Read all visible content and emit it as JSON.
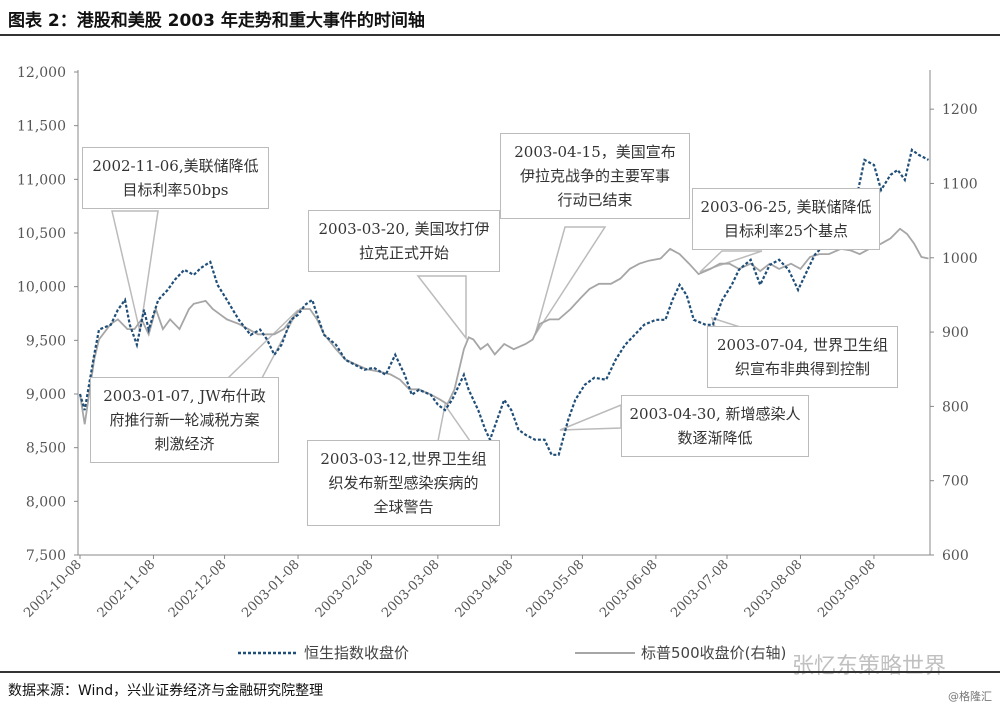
{
  "title": "图表 2：港股和美股 2003 年走势和重大事件的时间轴",
  "source": "数据来源：Wind，兴业证券经济与金融研究院整理",
  "watermark": "张忆东策略世界",
  "watermark2": "@格隆汇",
  "annotations": [
    {
      "lines": [
        "2002-11-06,美联储降低",
        "目标利率50bps"
      ]
    },
    {
      "lines": [
        "2003-01-07, JW布什政",
        "府推行新一轮减税方案",
        "刺激经济"
      ]
    },
    {
      "lines": [
        "2003-03-20, 美国攻打伊",
        "拉克正式开始"
      ]
    },
    {
      "lines": [
        "2003-04-15，美国宣布",
        "伊拉克战争的主要军事",
        "行动已结束"
      ]
    },
    {
      "lines": [
        "2003-06-25, 美联储降低",
        "目标利率25个基点"
      ]
    },
    {
      "lines": [
        "2003-07-04, 世界卫生组",
        "织宣布非典得到控制"
      ]
    },
    {
      "lines": [
        "2003-04-30, 新增感染人",
        "数逐渐降低"
      ]
    },
    {
      "lines": [
        "2003-03-12,世界卫生组",
        "织发布新型感染疾病的",
        "全球警告"
      ]
    }
  ],
  "chart_data": {
    "type": "line",
    "title": "",
    "xlabel": "",
    "ylabel": "",
    "grid": false,
    "legend_placement": "bottom",
    "x_ticks": [
      "2002-10-08",
      "2002-11-08",
      "2002-12-08",
      "2003-01-08",
      "2003-02-08",
      "2003-03-08",
      "2003-04-08",
      "2003-05-08",
      "2003-06-08",
      "2003-07-08",
      "2003-08-08",
      "2003-09-08"
    ],
    "y_left": {
      "lim": [
        7500,
        12000
      ],
      "ticks": [
        "7,500",
        "8,000",
        "8,500",
        "9,000",
        "9,500",
        "10,000",
        "10,500",
        "11,000",
        "11,500",
        "12,000"
      ]
    },
    "y_right": {
      "lim": [
        600,
        1250
      ],
      "ticks": [
        "600",
        "700",
        "800",
        "900",
        "1000",
        "1100",
        "1200"
      ]
    },
    "series": [
      {
        "name": "恒生指数收盘价",
        "axis": "left",
        "style": "dotted",
        "color": "#1f4e79",
        "points": [
          [
            "2002-10-08",
            9000
          ],
          [
            "2002-10-10",
            8850
          ],
          [
            "2002-10-14",
            9365
          ],
          [
            "2002-10-16",
            9600
          ],
          [
            "2002-10-21",
            9645
          ],
          [
            "2002-10-24",
            9785
          ],
          [
            "2002-10-27",
            9877
          ],
          [
            "2002-10-29",
            9645
          ],
          [
            "2002-11-01",
            9458
          ],
          [
            "2002-11-04",
            9785
          ],
          [
            "2002-11-06",
            9600
          ],
          [
            "2002-11-10",
            9877
          ],
          [
            "2002-11-14",
            9970
          ],
          [
            "2002-11-17",
            10064
          ],
          [
            "2002-11-21",
            10157
          ],
          [
            "2002-11-25",
            10110
          ],
          [
            "2002-11-28",
            10175
          ],
          [
            "2002-12-02",
            10231
          ],
          [
            "2002-12-05",
            10017
          ],
          [
            "2002-12-09",
            9877
          ],
          [
            "2002-12-14",
            9691
          ],
          [
            "2002-12-19",
            9551
          ],
          [
            "2002-12-23",
            9600
          ],
          [
            "2002-12-26",
            9505
          ],
          [
            "2002-12-29",
            9365
          ],
          [
            "2003-01-01",
            9458
          ],
          [
            "2003-01-05",
            9691
          ],
          [
            "2003-01-08",
            9738
          ],
          [
            "2003-01-11",
            9831
          ],
          [
            "2003-01-14",
            9877
          ],
          [
            "2003-01-16",
            9738
          ],
          [
            "2003-01-19",
            9551
          ],
          [
            "2003-01-24",
            9458
          ],
          [
            "2003-01-28",
            9319
          ],
          [
            "2003-02-01",
            9272
          ],
          [
            "2003-02-05",
            9226
          ],
          [
            "2003-02-09",
            9244
          ],
          [
            "2003-02-14",
            9179
          ],
          [
            "2003-02-18",
            9365
          ],
          [
            "2003-02-22",
            9179
          ],
          [
            "2003-02-25",
            8993
          ],
          [
            "2003-02-28",
            9039
          ],
          [
            "2003-03-05",
            8993
          ],
          [
            "2003-03-08",
            8900
          ],
          [
            "2003-03-11",
            8850
          ],
          [
            "2003-03-14",
            8946
          ],
          [
            "2003-03-17",
            9086
          ],
          [
            "2003-03-19",
            9179
          ],
          [
            "2003-03-21",
            9039
          ],
          [
            "2003-03-25",
            8850
          ],
          [
            "2003-03-28",
            8667
          ],
          [
            "2003-03-30",
            8574
          ],
          [
            "2003-04-02",
            8760
          ],
          [
            "2003-04-05",
            8946
          ],
          [
            "2003-04-08",
            8850
          ],
          [
            "2003-04-11",
            8667
          ],
          [
            "2003-04-14",
            8620
          ],
          [
            "2003-04-18",
            8574
          ],
          [
            "2003-04-22",
            8574
          ],
          [
            "2003-04-25",
            8434
          ],
          [
            "2003-04-28",
            8434
          ],
          [
            "2003-05-02",
            8760
          ],
          [
            "2003-05-05",
            8946
          ],
          [
            "2003-05-09",
            9086
          ],
          [
            "2003-05-13",
            9151
          ],
          [
            "2003-05-18",
            9133
          ],
          [
            "2003-05-22",
            9319
          ],
          [
            "2003-05-26",
            9458
          ],
          [
            "2003-05-30",
            9551
          ],
          [
            "2003-06-03",
            9645
          ],
          [
            "2003-06-08",
            9691
          ],
          [
            "2003-06-12",
            9691
          ],
          [
            "2003-06-15",
            9877
          ],
          [
            "2003-06-18",
            10017
          ],
          [
            "2003-06-21",
            9920
          ],
          [
            "2003-06-24",
            9691
          ],
          [
            "2003-06-29",
            9645
          ],
          [
            "2003-07-02",
            9645
          ],
          [
            "2003-07-06",
            9877
          ],
          [
            "2003-07-10",
            10017
          ],
          [
            "2003-07-13",
            10157
          ],
          [
            "2003-07-18",
            10250
          ],
          [
            "2003-07-22",
            10017
          ],
          [
            "2003-07-26",
            10202
          ],
          [
            "2003-07-30",
            10250
          ],
          [
            "2003-08-03",
            10157
          ],
          [
            "2003-08-07",
            9970
          ],
          [
            "2003-08-11",
            10157
          ],
          [
            "2003-08-14",
            10296
          ],
          [
            "2003-08-18",
            10389
          ],
          [
            "2003-08-23",
            10436
          ],
          [
            "2003-08-27",
            10482
          ],
          [
            "2003-08-31",
            10762
          ],
          [
            "2003-09-04",
            11181
          ],
          [
            "2003-09-08",
            11134
          ],
          [
            "2003-09-11",
            10901
          ],
          [
            "2003-09-15",
            11041
          ],
          [
            "2003-09-18",
            11088
          ],
          [
            "2003-09-21",
            10995
          ],
          [
            "2003-09-24",
            11274
          ],
          [
            "2003-09-27",
            11227
          ],
          [
            "2003-10-01",
            11181
          ]
        ]
      },
      {
        "name": "标普500收盘价(右轴)",
        "axis": "right",
        "style": "solid",
        "color": "#a6a6a6",
        "points": [
          [
            "2002-10-08",
            816
          ],
          [
            "2002-10-10",
            776
          ],
          [
            "2002-10-14",
            863
          ],
          [
            "2002-10-16",
            890
          ],
          [
            "2002-10-21",
            911
          ],
          [
            "2002-10-24",
            917
          ],
          [
            "2002-10-28",
            904
          ],
          [
            "2002-10-31",
            904
          ],
          [
            "2002-11-03",
            917
          ],
          [
            "2002-11-06",
            897
          ],
          [
            "2002-11-09",
            931
          ],
          [
            "2002-11-12",
            904
          ],
          [
            "2002-11-15",
            917
          ],
          [
            "2002-11-19",
            904
          ],
          [
            "2002-11-23",
            931
          ],
          [
            "2002-11-25",
            938
          ],
          [
            "2002-11-30",
            942
          ],
          [
            "2002-12-03",
            931
          ],
          [
            "2002-12-06",
            924
          ],
          [
            "2002-12-09",
            917
          ],
          [
            "2002-12-14",
            911
          ],
          [
            "2002-12-18",
            904
          ],
          [
            "2002-12-22",
            897
          ],
          [
            "2002-12-25",
            897
          ],
          [
            "2002-12-29",
            897
          ],
          [
            "2003-01-02",
            904
          ],
          [
            "2003-01-07",
            924
          ],
          [
            "2003-01-09",
            931
          ],
          [
            "2003-01-13",
            931
          ],
          [
            "2003-01-16",
            917
          ],
          [
            "2003-01-19",
            897
          ],
          [
            "2003-01-24",
            877
          ],
          [
            "2003-01-28",
            863
          ],
          [
            "2003-02-01",
            857
          ],
          [
            "2003-02-06",
            850
          ],
          [
            "2003-02-11",
            847
          ],
          [
            "2003-02-16",
            843
          ],
          [
            "2003-02-20",
            836
          ],
          [
            "2003-02-24",
            823
          ],
          [
            "2003-02-28",
            823
          ],
          [
            "2003-03-05",
            816
          ],
          [
            "2003-03-09",
            809
          ],
          [
            "2003-03-12",
            803
          ],
          [
            "2003-03-15",
            823
          ],
          [
            "2003-03-17",
            850
          ],
          [
            "2003-03-19",
            877
          ],
          [
            "2003-03-21",
            893
          ],
          [
            "2003-03-23",
            890
          ],
          [
            "2003-03-26",
            877
          ],
          [
            "2003-03-29",
            884
          ],
          [
            "2003-04-01",
            870
          ],
          [
            "2003-04-05",
            884
          ],
          [
            "2003-04-09",
            877
          ],
          [
            "2003-04-14",
            884
          ],
          [
            "2003-04-17",
            890
          ],
          [
            "2003-04-20",
            911
          ],
          [
            "2003-04-24",
            917
          ],
          [
            "2003-04-28",
            917
          ],
          [
            "2003-05-03",
            931
          ],
          [
            "2003-05-07",
            945
          ],
          [
            "2003-05-11",
            958
          ],
          [
            "2003-05-15",
            965
          ],
          [
            "2003-05-20",
            965
          ],
          [
            "2003-05-24",
            972
          ],
          [
            "2003-05-28",
            985
          ],
          [
            "2003-06-01",
            992
          ],
          [
            "2003-06-05",
            996
          ],
          [
            "2003-06-10",
            999
          ],
          [
            "2003-06-14",
            1012
          ],
          [
            "2003-06-18",
            1005
          ],
          [
            "2003-06-22",
            992
          ],
          [
            "2003-06-26",
            978
          ],
          [
            "2003-07-01",
            985
          ],
          [
            "2003-07-05",
            992
          ],
          [
            "2003-07-09",
            992
          ],
          [
            "2003-07-13",
            985
          ],
          [
            "2003-07-18",
            992
          ],
          [
            "2003-07-22",
            982
          ],
          [
            "2003-07-26",
            992
          ],
          [
            "2003-07-30",
            985
          ],
          [
            "2003-08-04",
            992
          ],
          [
            "2003-08-08",
            985
          ],
          [
            "2003-08-12",
            1001
          ],
          [
            "2003-08-16",
            1005
          ],
          [
            "2003-08-20",
            1005
          ],
          [
            "2003-08-25",
            1012
          ],
          [
            "2003-08-29",
            1010
          ],
          [
            "2003-09-02",
            1005
          ],
          [
            "2003-09-06",
            1012
          ],
          [
            "2003-09-11",
            1019
          ],
          [
            "2003-09-15",
            1026
          ],
          [
            "2003-09-19",
            1039
          ],
          [
            "2003-09-22",
            1032
          ],
          [
            "2003-09-25",
            1019
          ],
          [
            "2003-09-28",
            1001
          ],
          [
            "2003-10-01",
            999
          ]
        ]
      }
    ]
  }
}
